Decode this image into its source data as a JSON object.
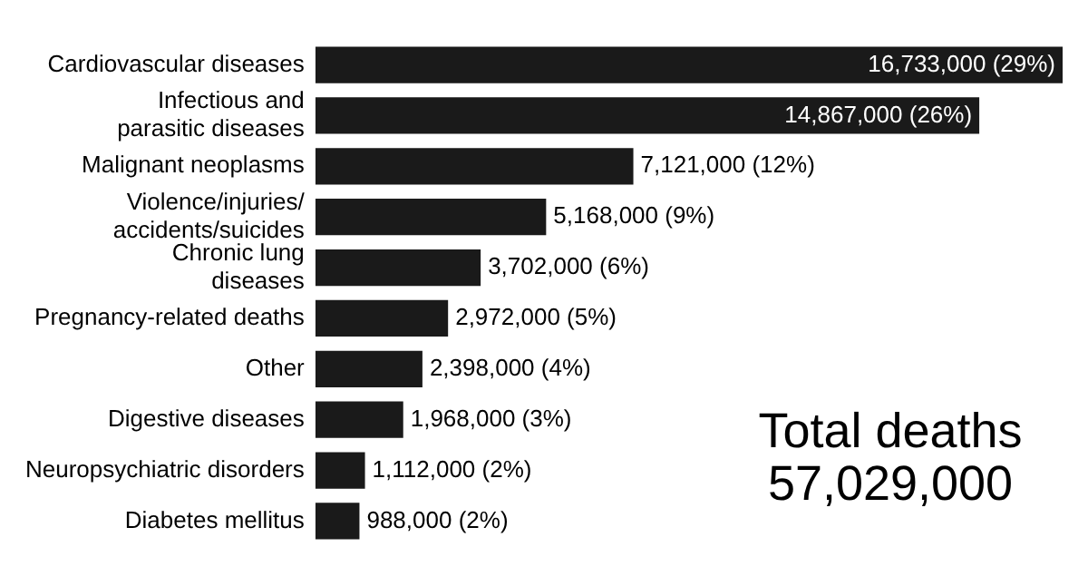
{
  "chart_data": {
    "type": "bar",
    "orientation": "horizontal",
    "categories": [
      "Cardiovascular diseases",
      "Infectious and\nparasitic diseases",
      "Malignant neoplasms",
      "Violence/injuries/\naccidents/suicides",
      "Chronic lung\ndiseases",
      "Pregnancy-related deaths",
      "Other",
      "Digestive diseases",
      "Neuropsychiatric disorders",
      "Diabetes mellitus"
    ],
    "values": [
      16733000,
      14867000,
      7121000,
      5168000,
      3702000,
      2972000,
      2398000,
      1968000,
      1112000,
      988000
    ],
    "color": "#1a1a1a",
    "value_labels": [
      "16,733,000 (29%)",
      "14,867,000 (26%)",
      "7,121,000 (12%)",
      "5,168,000 (9%)",
      "3,702,000 (6%)",
      "2,972,000 (5%)",
      "2,398,000 (4%)",
      "1,968,000 (3%)",
      "1,112,000 (2%)",
      "988,000 (2%)"
    ],
    "annotations": [
      "Total deaths",
      "57,029,000"
    ],
    "grid": false,
    "legend": false
  }
}
